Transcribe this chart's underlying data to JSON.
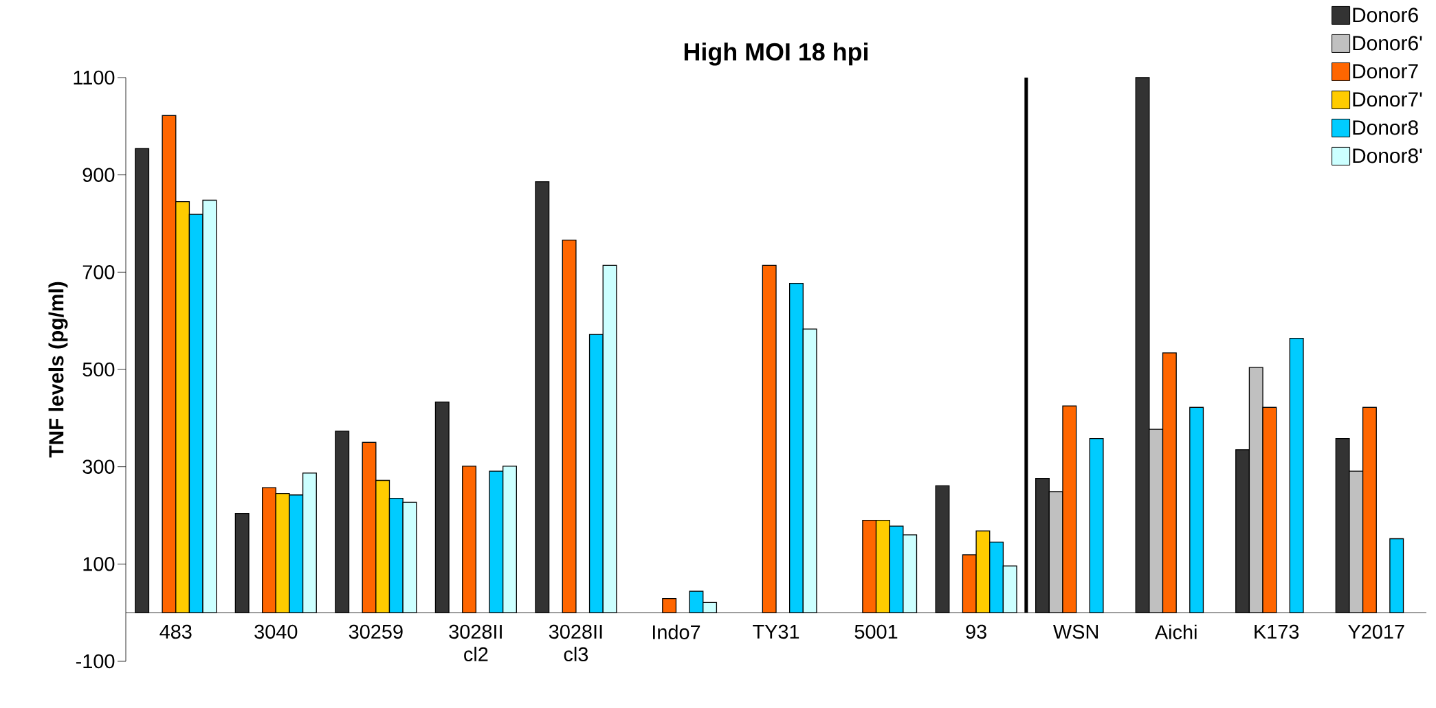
{
  "chart_data": {
    "type": "bar",
    "title": "High MOI 18 hpi",
    "ylabel": "TNF levels (pg/ml)",
    "categories": [
      "483",
      "3040",
      "30259",
      "3028II cl2",
      "3028II cl3",
      "Indo7",
      "TY31",
      "5001",
      "93",
      "WSN",
      "Aichi",
      "K173",
      "Y2017"
    ],
    "series": [
      {
        "name": "Donor6",
        "color": "#333333",
        "values": [
          954,
          204,
          373,
          433,
          886,
          null,
          null,
          null,
          261,
          276,
          1100,
          335,
          358
        ]
      },
      {
        "name": "Donor6'",
        "color": "#c0c0c0",
        "values": [
          null,
          null,
          null,
          null,
          null,
          null,
          null,
          null,
          null,
          249,
          377,
          504,
          291
        ]
      },
      {
        "name": "Donor7",
        "color": "#ff6600",
        "values": [
          1022,
          257,
          350,
          301,
          766,
          29,
          714,
          190,
          119,
          425,
          534,
          422,
          422
        ]
      },
      {
        "name": "Donor7'",
        "color": "#ffcc00",
        "values": [
          845,
          245,
          272,
          null,
          null,
          null,
          null,
          190,
          168,
          null,
          null,
          null,
          null
        ]
      },
      {
        "name": "Donor8",
        "color": "#00ccff",
        "values": [
          819,
          242,
          235,
          291,
          572,
          44,
          677,
          178,
          145,
          358,
          422,
          564,
          152
        ]
      },
      {
        "name": "Donor8'",
        "color": "#ccffff",
        "values": [
          848,
          287,
          227,
          301,
          714,
          21,
          583,
          160,
          96,
          null,
          null,
          null,
          null
        ]
      }
    ],
    "ylim": [
      -100,
      1100
    ],
    "yticks": [
      -100,
      100,
      300,
      500,
      700,
      900,
      1100
    ],
    "legend": "top right"
  }
}
